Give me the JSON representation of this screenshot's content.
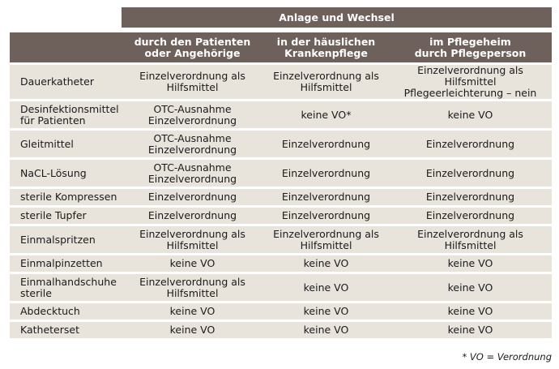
{
  "title": "Anlage und Wechsel",
  "columns": [
    "",
    "durch den Patienten\noder Angehörige",
    "in der häuslichen\nKrankenpflege",
    "im Pflegeheim\ndurch Pflegeperson"
  ],
  "rows": [
    [
      "Dauerkatheter",
      "Einzelverordnung als\nHilfsmittel",
      "Einzelverordnung als\nHilfsmittel",
      "Einzelverordnung als Hilfsmittel\nPflegeerleichterung – nein"
    ],
    [
      "Desinfektionsmittel\nfür Patienten",
      "OTC-Ausnahme\nEinzelverordnung",
      "keine VO*",
      "keine VO"
    ],
    [
      "Gleitmittel",
      "OTC-Ausnahme\nEinzelverordnung",
      "Einzelverordnung",
      "Einzelverordnung"
    ],
    [
      "NaCL-Lösung",
      "OTC-Ausnahme\nEinzelverordnung",
      "Einzelverordnung",
      "Einzelverordnung"
    ],
    [
      "sterile Kompressen",
      "Einzelverordnung",
      "Einzelverordnung",
      "Einzelverordnung"
    ],
    [
      "sterile Tupfer",
      "Einzelverordnung",
      "Einzelverordnung",
      "Einzelverordnung"
    ],
    [
      "Einmalspritzen",
      "Einzelverordnung als\nHilfsmittel",
      "Einzelverordnung als\nHilfsmittel",
      "Einzelverordnung als Hilfsmittel"
    ],
    [
      "Einmalpinzetten",
      "keine VO",
      "keine VO",
      "keine VO"
    ],
    [
      "Einmalhandschuhe\nsterile",
      "Einzelverordnung als\nHilfsmittel",
      "keine VO",
      "keine VO"
    ],
    [
      "Abdecktuch",
      "keine VO",
      "keine VO",
      "keine VO"
    ],
    [
      "Katheterset",
      "keine VO",
      "keine VO",
      "keine VO"
    ]
  ],
  "footnote": "* VO = Verordnung",
  "colors": {
    "header_bg": "#6e615b",
    "row_bg": "#e8e4dc",
    "header_text": "#ffffff"
  }
}
